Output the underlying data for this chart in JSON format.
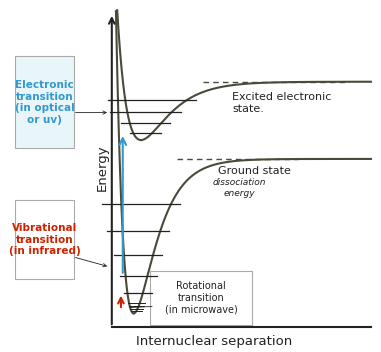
{
  "bg_color": "#ffffff",
  "curve_color": "#4a4a3a",
  "line_color": "#222222",
  "axis_color": "#222222",
  "xlabel": "Internuclear separation",
  "ylabel": "Energy",
  "xlabel_fontsize": 9.5,
  "ylabel_fontsize": 9.5,
  "electronic_label": "Electronic\ntransition\n(in optical\nor uv)",
  "electronic_color": "#3399cc",
  "vibrational_label": "Vibrational\ntransition\n(in infrared)",
  "vibrational_color": "#cc2200",
  "rotational_label": "Rotational\ntransition\n(in microwave)",
  "rotational_color": "#222222",
  "excited_state_label": "Excited electronic\nstate.",
  "ground_state_label": "Ground state",
  "dissociation_label": "dissociation\nenergy"
}
